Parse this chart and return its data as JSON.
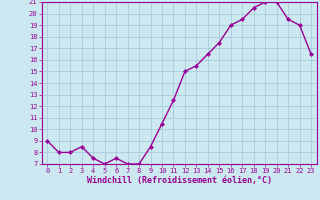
{
  "x": [
    0,
    1,
    2,
    3,
    4,
    5,
    6,
    7,
    8,
    9,
    10,
    11,
    12,
    13,
    14,
    15,
    16,
    17,
    18,
    19,
    20,
    21,
    22,
    23
  ],
  "y": [
    9,
    8,
    8,
    8.5,
    7.5,
    7,
    7.5,
    7,
    7,
    8.5,
    10.5,
    12.5,
    15,
    15.5,
    16.5,
    17.5,
    19,
    19.5,
    20.5,
    21,
    21,
    19.5,
    19,
    16.5
  ],
  "line_color": "#990099",
  "marker": "D",
  "marker_size": 2,
  "bg_color": "#cce8f0",
  "grid_color": "#aaccdd",
  "xlabel": "Windchill (Refroidissement éolien,°C)",
  "xlabel_color": "#990099",
  "tick_color": "#990099",
  "spine_color": "#990099",
  "ylim": [
    7,
    21
  ],
  "xlim": [
    -0.5,
    23.5
  ],
  "yticks": [
    7,
    8,
    9,
    10,
    11,
    12,
    13,
    14,
    15,
    16,
    17,
    18,
    19,
    20,
    21
  ],
  "xticks": [
    0,
    1,
    2,
    3,
    4,
    5,
    6,
    7,
    8,
    9,
    10,
    11,
    12,
    13,
    14,
    15,
    16,
    17,
    18,
    19,
    20,
    21,
    22,
    23
  ],
  "tick_fontsize": 5,
  "xlabel_fontsize": 6,
  "line_width": 1.0
}
